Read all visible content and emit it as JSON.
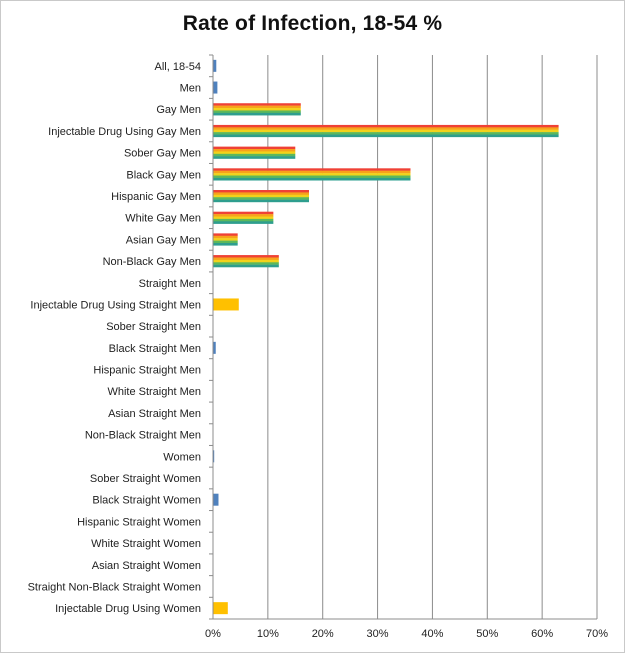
{
  "chart_data": {
    "type": "bar",
    "orientation": "horizontal",
    "title": "Rate of Infection, 18-54 %",
    "xlim": [
      0,
      70
    ],
    "xticks": [
      "0%",
      "10%",
      "20%",
      "30%",
      "40%",
      "50%",
      "60%",
      "70%"
    ],
    "grid": true,
    "colors": {
      "rainbow": [
        "#ef4136",
        "#f7a21b",
        "#f2d21b",
        "#5cb85c",
        "#2e9e8e"
      ],
      "plain": "#4f81bd",
      "drug": "#ffc000"
    },
    "categories": [
      {
        "label": "All, 18-54",
        "value": 0.6,
        "style": "plain"
      },
      {
        "label": "Men",
        "value": 0.8,
        "style": "plain"
      },
      {
        "label": "Gay Men",
        "value": 16,
        "style": "rainbow"
      },
      {
        "label": "Injectable Drug Using Gay Men",
        "value": 63,
        "style": "rainbow"
      },
      {
        "label": "Sober Gay Men",
        "value": 15,
        "style": "rainbow"
      },
      {
        "label": "Black Gay Men",
        "value": 36,
        "style": "rainbow"
      },
      {
        "label": "Hispanic Gay Men",
        "value": 17.5,
        "style": "rainbow"
      },
      {
        "label": "White Gay Men",
        "value": 11,
        "style": "rainbow"
      },
      {
        "label": "Asian Gay Men",
        "value": 4.5,
        "style": "rainbow"
      },
      {
        "label": "Non-Black Gay Men",
        "value": 12,
        "style": "rainbow"
      },
      {
        "label": "Straight Men",
        "value": 0,
        "style": "plain"
      },
      {
        "label": "Injectable Drug Using Straight Men",
        "value": 4.7,
        "style": "drug"
      },
      {
        "label": "Sober Straight Men",
        "value": 0,
        "style": "plain"
      },
      {
        "label": "Black Straight Men",
        "value": 0.5,
        "style": "plain"
      },
      {
        "label": "Hispanic Straight Men",
        "value": 0,
        "style": "plain"
      },
      {
        "label": "White Straight Men",
        "value": 0,
        "style": "plain"
      },
      {
        "label": "Asian Straight Men",
        "value": 0,
        "style": "plain"
      },
      {
        "label": "Non-Black Straight Men",
        "value": 0,
        "style": "plain"
      },
      {
        "label": "Women",
        "value": 0.2,
        "style": "plain"
      },
      {
        "label": "Sober Straight Women",
        "value": 0,
        "style": "plain"
      },
      {
        "label": "Black Straight Women",
        "value": 1,
        "style": "plain"
      },
      {
        "label": "Hispanic Straight Women",
        "value": 0,
        "style": "plain"
      },
      {
        "label": "White Straight Women",
        "value": 0,
        "style": "plain"
      },
      {
        "label": "Asian Straight Women",
        "value": 0,
        "style": "plain"
      },
      {
        "label": "Straight Non-Black Straight Women",
        "value": 0,
        "style": "plain"
      },
      {
        "label": "Injectable Drug Using Women",
        "value": 2.7,
        "style": "drug"
      }
    ]
  }
}
